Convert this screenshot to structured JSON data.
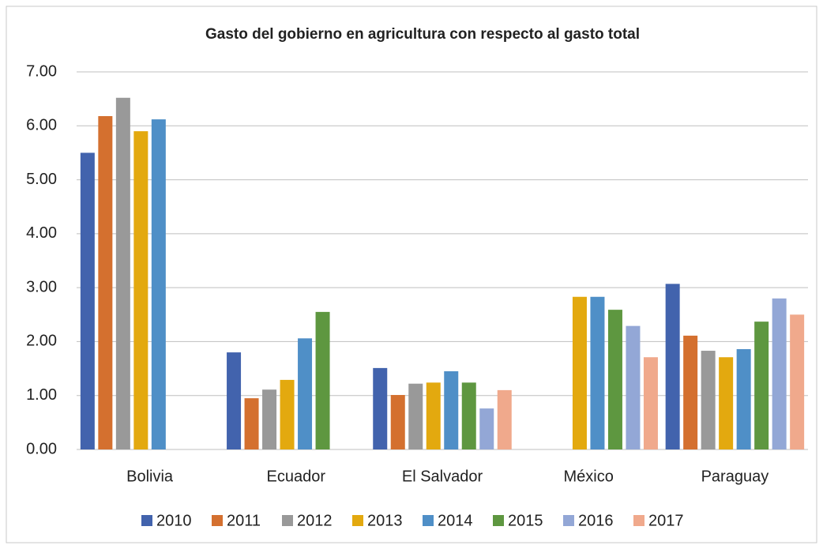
{
  "chart_data": {
    "type": "bar",
    "title": "Gasto del gobierno en agricultura con respecto al gasto total",
    "categories": [
      "Bolivia",
      "Ecuador",
      "El Salvador",
      "México",
      "Paraguay"
    ],
    "series": [
      {
        "name": "2010",
        "color": "#4263ad",
        "values": [
          5.5,
          1.8,
          1.51,
          null,
          3.07
        ]
      },
      {
        "name": "2011",
        "color": "#d4702f",
        "values": [
          6.18,
          0.95,
          1.01,
          null,
          2.11
        ]
      },
      {
        "name": "2012",
        "color": "#999999",
        "values": [
          6.52,
          1.11,
          1.22,
          null,
          1.83
        ]
      },
      {
        "name": "2013",
        "color": "#e3a90f",
        "values": [
          5.9,
          1.29,
          1.24,
          2.83,
          1.71
        ]
      },
      {
        "name": "2014",
        "color": "#4f8fc7",
        "values": [
          6.12,
          2.06,
          1.45,
          2.83,
          1.86
        ]
      },
      {
        "name": "2015",
        "color": "#5e9740",
        "values": [
          null,
          2.55,
          1.24,
          2.59,
          2.37
        ]
      },
      {
        "name": "2016",
        "color": "#93a7d6",
        "values": [
          null,
          null,
          0.76,
          2.29,
          2.8
        ]
      },
      {
        "name": "2017",
        "color": "#f0a98c",
        "values": [
          null,
          null,
          1.1,
          1.71,
          2.5
        ]
      }
    ],
    "ylim": [
      0,
      7
    ],
    "yticks": [
      {
        "value": 0,
        "label": "0.00"
      },
      {
        "value": 1,
        "label": "1.00"
      },
      {
        "value": 2,
        "label": "2.00"
      },
      {
        "value": 3,
        "label": "3.00"
      },
      {
        "value": 4,
        "label": "4.00"
      },
      {
        "value": 5,
        "label": "5.00"
      },
      {
        "value": 6,
        "label": "6.00"
      },
      {
        "value": 7,
        "label": "7.00"
      }
    ],
    "grid": true,
    "legend": "bottom"
  }
}
